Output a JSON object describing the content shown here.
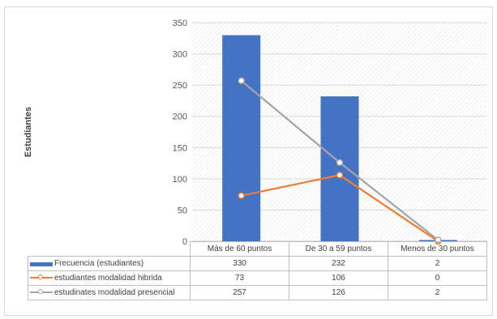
{
  "chart_data": {
    "type": "bar",
    "ylabel": "Estudiantes",
    "ylim": [
      0,
      350
    ],
    "yticks": [
      "0",
      "50",
      "100",
      "150",
      "200",
      "250",
      "300",
      "350"
    ],
    "categories": [
      "Más de 60 puntos",
      "De 30 a 59 puntos",
      "Menos de 30 puntos"
    ],
    "series": [
      {
        "name": "Frecuencia (estudiantes)",
        "kind": "bar",
        "color": "#4472c4",
        "values": [
          330,
          232,
          2
        ],
        "labels": [
          "330",
          "232",
          "2"
        ]
      },
      {
        "name": "estudiantes modalidad hibrida",
        "kind": "line",
        "color": "#ed7d31",
        "values": [
          73,
          106,
          0
        ],
        "labels": [
          "73",
          "106",
          "0"
        ]
      },
      {
        "name": "estudinates modalidad presencial",
        "kind": "line",
        "color": "#a5a5a5",
        "values": [
          257,
          126,
          2
        ],
        "labels": [
          "257",
          "126",
          "2"
        ]
      }
    ],
    "grid": "horizontal",
    "plot_background": "diagonal-hatch",
    "legend": "data-table"
  }
}
